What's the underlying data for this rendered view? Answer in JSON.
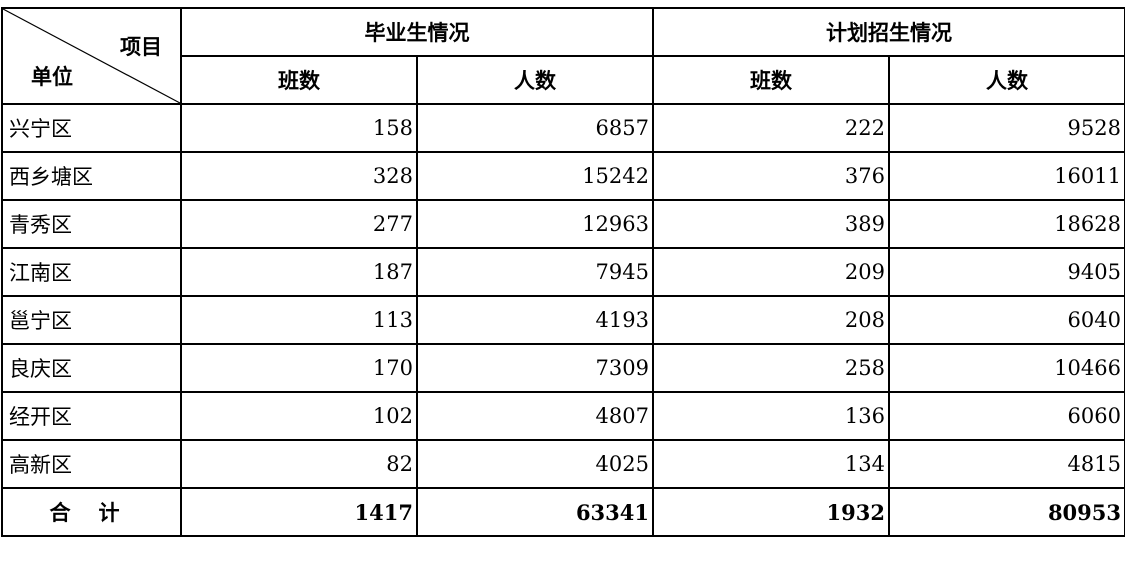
{
  "header": {
    "corner_item": "项目",
    "corner_unit": "单位",
    "groups": [
      "毕业生情况",
      "计划招生情况"
    ],
    "subcolumns": [
      "班数",
      "人数",
      "班数",
      "人数"
    ]
  },
  "rows": [
    {
      "name": "兴宁区",
      "values": [
        "158",
        "6857",
        "222",
        "9528"
      ]
    },
    {
      "name": "西乡塘区",
      "values": [
        "328",
        "15242",
        "376",
        "16011"
      ]
    },
    {
      "name": "青秀区",
      "values": [
        "277",
        "12963",
        "389",
        "18628"
      ]
    },
    {
      "name": "江南区",
      "values": [
        "187",
        "7945",
        "209",
        "9405"
      ]
    },
    {
      "name": "邕宁区",
      "values": [
        "113",
        "4193",
        "208",
        "6040"
      ]
    },
    {
      "name": "良庆区",
      "values": [
        "170",
        "7309",
        "258",
        "10466"
      ]
    },
    {
      "name": "经开区",
      "values": [
        "102",
        "4807",
        "136",
        "6060"
      ]
    },
    {
      "name": "高新区",
      "values": [
        "82",
        "4025",
        "134",
        "4815"
      ]
    }
  ],
  "total": {
    "name": "合计",
    "values": [
      "1417",
      "63341",
      "1932",
      "80953"
    ]
  }
}
